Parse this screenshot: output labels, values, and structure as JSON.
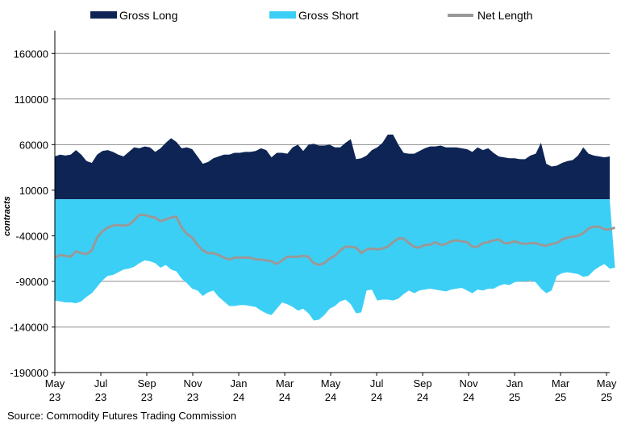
{
  "chart_data": {
    "type": "area",
    "ylabel": "contracts",
    "ylim": [
      -190000,
      185000
    ],
    "yticks": [
      160000,
      110000,
      60000,
      10000,
      -40000,
      -90000,
      -140000,
      -190000
    ],
    "ytick_labels": [
      "160000",
      "110000",
      "60000",
      "10000",
      "-40000",
      "-90000",
      "-140000",
      "-190000"
    ],
    "grid": "horizontal",
    "legend_position": "top",
    "x_start": "May 23",
    "x_labels": [
      {
        "index": 0,
        "month": "May",
        "year": "23"
      },
      {
        "index": 8.7,
        "month": "Jul",
        "year": "23"
      },
      {
        "index": 17.4,
        "month": "Sep",
        "year": "23"
      },
      {
        "index": 26.1,
        "month": "Nov",
        "year": "23"
      },
      {
        "index": 34.8,
        "month": "Jan",
        "year": "24"
      },
      {
        "index": 43.5,
        "month": "Mar",
        "year": "24"
      },
      {
        "index": 52.2,
        "month": "May",
        "year": "24"
      },
      {
        "index": 60.9,
        "month": "Jul",
        "year": "24"
      },
      {
        "index": 69.6,
        "month": "Sep",
        "year": "24"
      },
      {
        "index": 78.3,
        "month": "Nov",
        "year": "24"
      },
      {
        "index": 87.0,
        "month": "Jan",
        "year": "25"
      },
      {
        "index": 95.7,
        "month": "Mar",
        "year": "25"
      },
      {
        "index": 104.4,
        "month": "May",
        "year": "25"
      }
    ],
    "series": [
      {
        "name": "Gross Long",
        "kind": "area",
        "color": "#0d2454",
        "values": [
          47000,
          49000,
          48000,
          49000,
          54000,
          49000,
          42000,
          40000,
          49000,
          53000,
          54000,
          52000,
          49000,
          47000,
          52000,
          57000,
          56000,
          58000,
          57000,
          52000,
          56000,
          62000,
          67000,
          63000,
          56000,
          57000,
          55000,
          47000,
          39000,
          41000,
          45000,
          47000,
          49000,
          49000,
          51000,
          51000,
          52000,
          52000,
          53000,
          56000,
          54000,
          46000,
          51000,
          51000,
          50000,
          57000,
          60000,
          53000,
          60000,
          61000,
          59000,
          59000,
          60000,
          57000,
          57000,
          62000,
          66000,
          44000,
          45000,
          48000,
          54000,
          57000,
          62000,
          71000,
          71000,
          60000,
          51000,
          50000,
          50000,
          53000,
          56000,
          58000,
          58000,
          59000,
          57000,
          57000,
          57000,
          56000,
          55000,
          52000,
          57000,
          54000,
          56000,
          51000,
          47000,
          46000,
          45000,
          45000,
          44000,
          44000,
          48000,
          50000,
          62000,
          39000,
          36000,
          37000,
          40000,
          42000,
          43000,
          48000,
          57000,
          50000,
          48000,
          47000,
          46000,
          47000
        ]
      },
      {
        "name": "Gross Short",
        "kind": "area",
        "color": "#3ccff5",
        "values": [
          -111000,
          -112000,
          -113000,
          -113000,
          -114000,
          -112000,
          -107000,
          -103000,
          -96000,
          -89000,
          -84000,
          -83000,
          -80000,
          -77000,
          -76000,
          -74000,
          -70000,
          -67000,
          -68000,
          -70000,
          -75000,
          -72000,
          -77000,
          -79000,
          -87000,
          -92000,
          -98000,
          -100000,
          -106000,
          -102000,
          -100000,
          -107000,
          -112000,
          -117000,
          -117000,
          -116000,
          -116000,
          -117000,
          -118000,
          -122000,
          -125000,
          -127000,
          -120000,
          -113000,
          -115000,
          -118000,
          -122000,
          -120000,
          -125000,
          -133000,
          -132000,
          -127000,
          -120000,
          -117000,
          -112000,
          -110000,
          -115000,
          -125000,
          -124000,
          -100000,
          -99000,
          -111000,
          -110000,
          -110000,
          -111000,
          -109000,
          -104000,
          -100000,
          -103000,
          -100000,
          -99000,
          -98000,
          -99000,
          -100000,
          -101000,
          -99000,
          -98000,
          -97000,
          -100000,
          -103000,
          -99000,
          -100000,
          -98000,
          -98000,
          -95000,
          -93000,
          -94000,
          -91000,
          -90000,
          -90000,
          -89000,
          -91000,
          -98000,
          -103000,
          -100000,
          -84000,
          -81000,
          -80000,
          -81000,
          -82000,
          -85000,
          -84000,
          -78000,
          -74000,
          -71000,
          -76000,
          -75000
        ]
      },
      {
        "name": "Net Length",
        "kind": "line",
        "color": "#999999",
        "values": [
          -64000,
          -61000,
          -62000,
          -63000,
          -57000,
          -59000,
          -60000,
          -56000,
          -42000,
          -35000,
          -31000,
          -29000,
          -28000,
          -29000,
          -28000,
          -23000,
          -17000,
          -17000,
          -19000,
          -20000,
          -24000,
          -22000,
          -20000,
          -19000,
          -31000,
          -38000,
          -42000,
          -50000,
          -56000,
          -59000,
          -59000,
          -61000,
          -64000,
          -66000,
          -64000,
          -64000,
          -64000,
          -64000,
          -66000,
          -66000,
          -67000,
          -68000,
          -71000,
          -67000,
          -63000,
          -63000,
          -63000,
          -62000,
          -63000,
          -70000,
          -72000,
          -70000,
          -65000,
          -62000,
          -56000,
          -52000,
          -52000,
          -53000,
          -59000,
          -55000,
          -54000,
          -55000,
          -54000,
          -52000,
          -47000,
          -43000,
          -43000,
          -48000,
          -52000,
          -53000,
          -50000,
          -50000,
          -47000,
          -50000,
          -49000,
          -46000,
          -45000,
          -46000,
          -47000,
          -52000,
          -52000,
          -48000,
          -47000,
          -45000,
          -44000,
          -48000,
          -48000,
          -46000,
          -48000,
          -49000,
          -48000,
          -48000,
          -50000,
          -51000,
          -49000,
          -48000,
          -44000,
          -42000,
          -41000,
          -40000,
          -37000,
          -32000,
          -30000,
          -30000,
          -33000,
          -33000,
          -31000
        ]
      }
    ],
    "legend": [
      {
        "label": "Gross Long",
        "color": "#0d2454",
        "style": "block"
      },
      {
        "label": "Gross Short",
        "color": "#3ccff5",
        "style": "block"
      },
      {
        "label": "Net Length",
        "color": "#999999",
        "style": "line"
      }
    ]
  },
  "source": "Source: Commodity Futures Trading Commission"
}
